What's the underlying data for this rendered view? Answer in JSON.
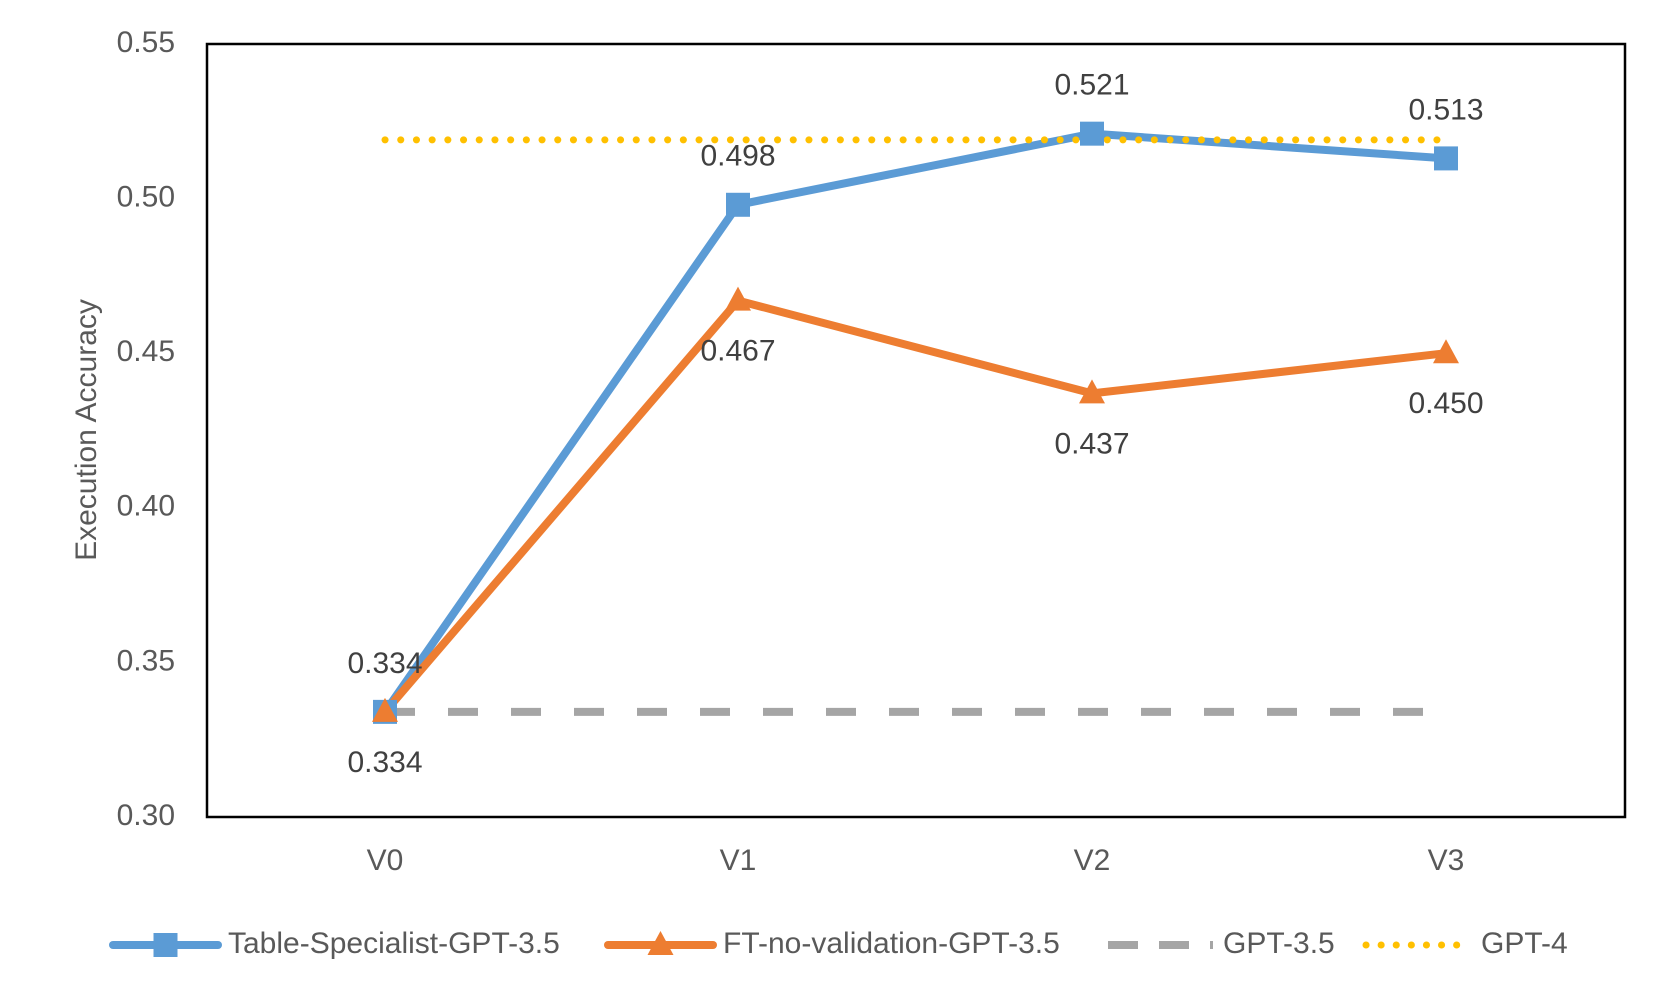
{
  "chart_data": {
    "type": "line",
    "title": "",
    "xlabel": "",
    "ylabel": "Execution Accuracy",
    "categories": [
      "V0",
      "V1",
      "V2",
      "V3"
    ],
    "ylim": [
      0.3,
      0.55
    ],
    "yticks": [
      "0.30",
      "0.35",
      "0.40",
      "0.45",
      "0.50",
      "0.55"
    ],
    "grid": false,
    "legend_position": "bottom",
    "series": [
      {
        "name": "Table-Specialist-GPT-3.5",
        "values": [
          0.334,
          0.498,
          0.521,
          0.513
        ],
        "labels": [
          "0.334",
          "0.498",
          "0.521",
          "0.513"
        ],
        "label_placement": [
          "above",
          "above",
          "above",
          "above"
        ],
        "color": "#5B9BD5",
        "marker": "square",
        "style": "solid"
      },
      {
        "name": "FT-no-validation-GPT-3.5",
        "values": [
          0.334,
          0.467,
          0.437,
          0.45
        ],
        "labels": [
          "0.334",
          "0.467",
          "0.437",
          "0.450"
        ],
        "label_placement": [
          "below",
          "below",
          "below",
          "below"
        ],
        "color": "#ED7D31",
        "marker": "triangle",
        "style": "solid"
      },
      {
        "name": "GPT-3.5",
        "values": [
          0.334,
          0.334,
          0.334,
          0.334
        ],
        "color": "#A5A5A5",
        "marker": "none",
        "style": "dashed"
      },
      {
        "name": "GPT-4",
        "values": [
          0.519,
          0.519,
          0.519,
          0.519
        ],
        "color": "#FFC000",
        "marker": "none",
        "style": "dotted"
      }
    ]
  }
}
